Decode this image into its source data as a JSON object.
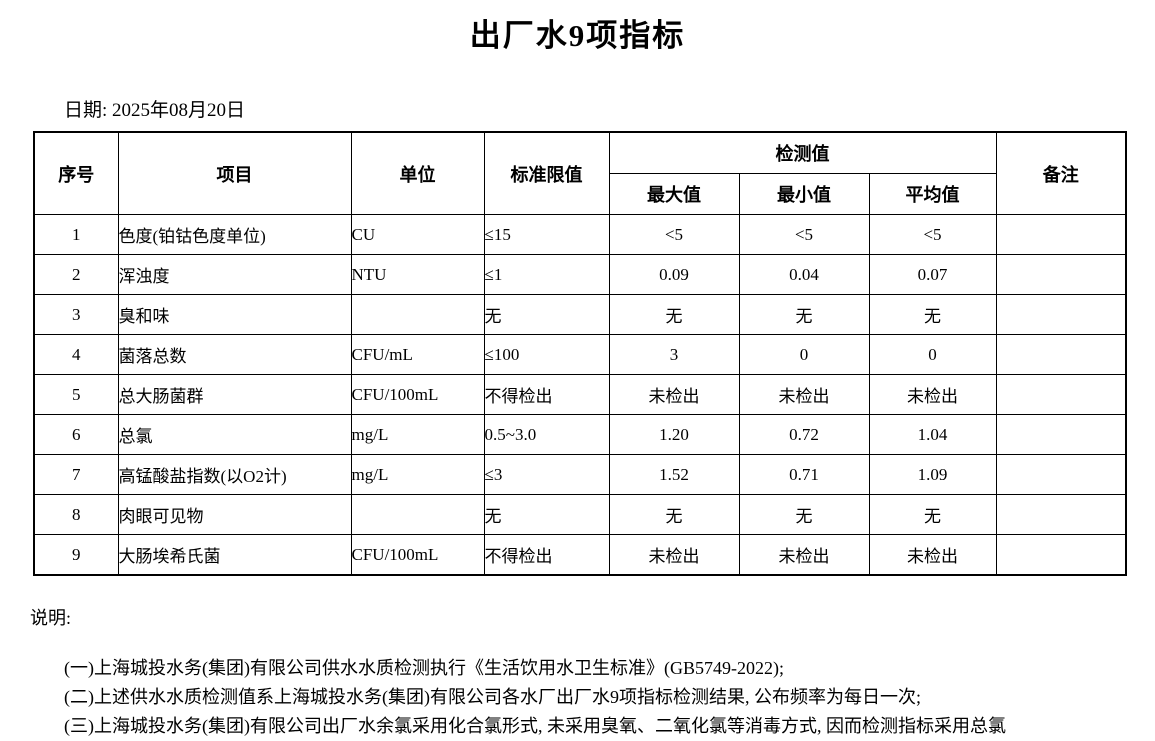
{
  "page": {
    "title": "出厂水9项指标",
    "date_label": "日期: 2025年08月20日"
  },
  "table": {
    "headers": {
      "seq": "序号",
      "item": "项目",
      "unit": "单位",
      "limit": "标准限值",
      "detection": "检测值",
      "max": "最大值",
      "min": "最小值",
      "avg": "平均值",
      "remark": "备注"
    },
    "rows": [
      {
        "seq": "1",
        "item": "色度(铂钴色度单位)",
        "unit": "CU",
        "limit": "≤15",
        "max": "<5",
        "min": "<5",
        "avg": "<5",
        "remark": ""
      },
      {
        "seq": "2",
        "item": "浑浊度",
        "unit": "NTU",
        "limit": "≤1",
        "max": "0.09",
        "min": "0.04",
        "avg": "0.07",
        "remark": ""
      },
      {
        "seq": "3",
        "item": "臭和味",
        "unit": "",
        "limit": "无",
        "max": "无",
        "min": "无",
        "avg": "无",
        "remark": ""
      },
      {
        "seq": "4",
        "item": "菌落总数",
        "unit": "CFU/mL",
        "limit": "≤100",
        "max": "3",
        "min": "0",
        "avg": "0",
        "remark": ""
      },
      {
        "seq": "5",
        "item": "总大肠菌群",
        "unit": "CFU/100mL",
        "limit": "不得检出",
        "max": "未检出",
        "min": "未检出",
        "avg": "未检出",
        "remark": ""
      },
      {
        "seq": "6",
        "item": "总氯",
        "unit": "mg/L",
        "limit": "0.5~3.0",
        "max": "1.20",
        "min": "0.72",
        "avg": "1.04",
        "remark": ""
      },
      {
        "seq": "7",
        "item": "高锰酸盐指数(以O2计)",
        "unit": "mg/L",
        "limit": "≤3",
        "max": "1.52",
        "min": "0.71",
        "avg": "1.09",
        "remark": ""
      },
      {
        "seq": "8",
        "item": "肉眼可见物",
        "unit": "",
        "limit": "无",
        "max": "无",
        "min": "无",
        "avg": "无",
        "remark": ""
      },
      {
        "seq": "9",
        "item": "大肠埃希氏菌",
        "unit": "CFU/100mL",
        "limit": "不得检出",
        "max": "未检出",
        "min": "未检出",
        "avg": "未检出",
        "remark": ""
      }
    ]
  },
  "notes": {
    "label": "说明:",
    "items": [
      "(一)上海城投水务(集团)有限公司供水水质检测执行《生活饮用水卫生标准》(GB5749-2022);",
      "(二)上述供水水质检测值系上海城投水务(集团)有限公司各水厂出厂水9项指标检测结果, 公布频率为每日一次;",
      "(三)上海城投水务(集团)有限公司出厂水余氯采用化合氯形式, 未采用臭氧、二氧化氯等消毒方式, 因而检测指标采用总氯"
    ]
  }
}
